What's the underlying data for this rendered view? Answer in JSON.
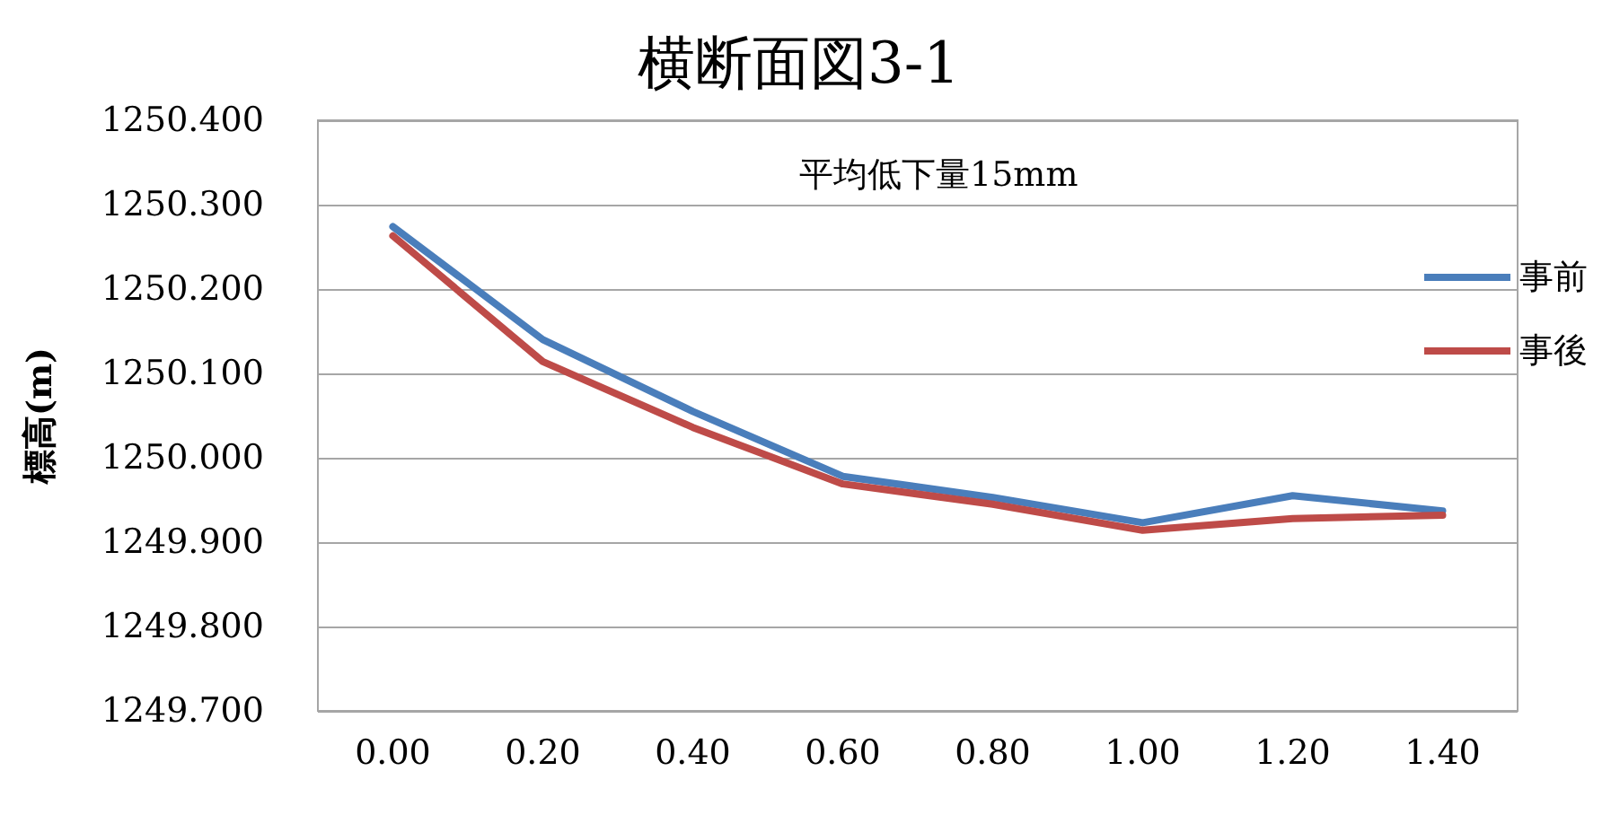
{
  "chart_data": {
    "type": "line",
    "title": "横断面図3-1",
    "ylabel": "標高(m)",
    "annotations": [
      "平均低下量15mm"
    ],
    "categories": [
      "0.00",
      "0.20",
      "0.40",
      "0.60",
      "0.80",
      "1.00",
      "1.20",
      "1.40"
    ],
    "series": [
      {
        "name": "事前",
        "color": "#4a7ebb",
        "values": [
          1250.274,
          1250.14,
          1250.055,
          1249.978,
          1249.953,
          1249.923,
          1249.955,
          1249.937
        ]
      },
      {
        "name": "事後",
        "color": "#be4b48",
        "values": [
          1250.263,
          1250.114,
          1250.036,
          1249.969,
          1249.945,
          1249.914,
          1249.928,
          1249.932
        ]
      }
    ],
    "ylim": [
      1249.7,
      1250.4
    ],
    "yticks": [
      {
        "value": 1249.7,
        "label": "1249.700"
      },
      {
        "value": 1249.8,
        "label": "1249.800"
      },
      {
        "value": 1249.9,
        "label": "1249.900"
      },
      {
        "value": 1250.0,
        "label": "1250.000"
      },
      {
        "value": 1250.1,
        "label": "1250.100"
      },
      {
        "value": 1250.2,
        "label": "1250.200"
      },
      {
        "value": 1250.3,
        "label": "1250.300"
      },
      {
        "value": 1250.4,
        "label": "1250.400"
      }
    ],
    "grid": "y",
    "legend": "right",
    "marker": "none",
    "line_style": "solid"
  }
}
